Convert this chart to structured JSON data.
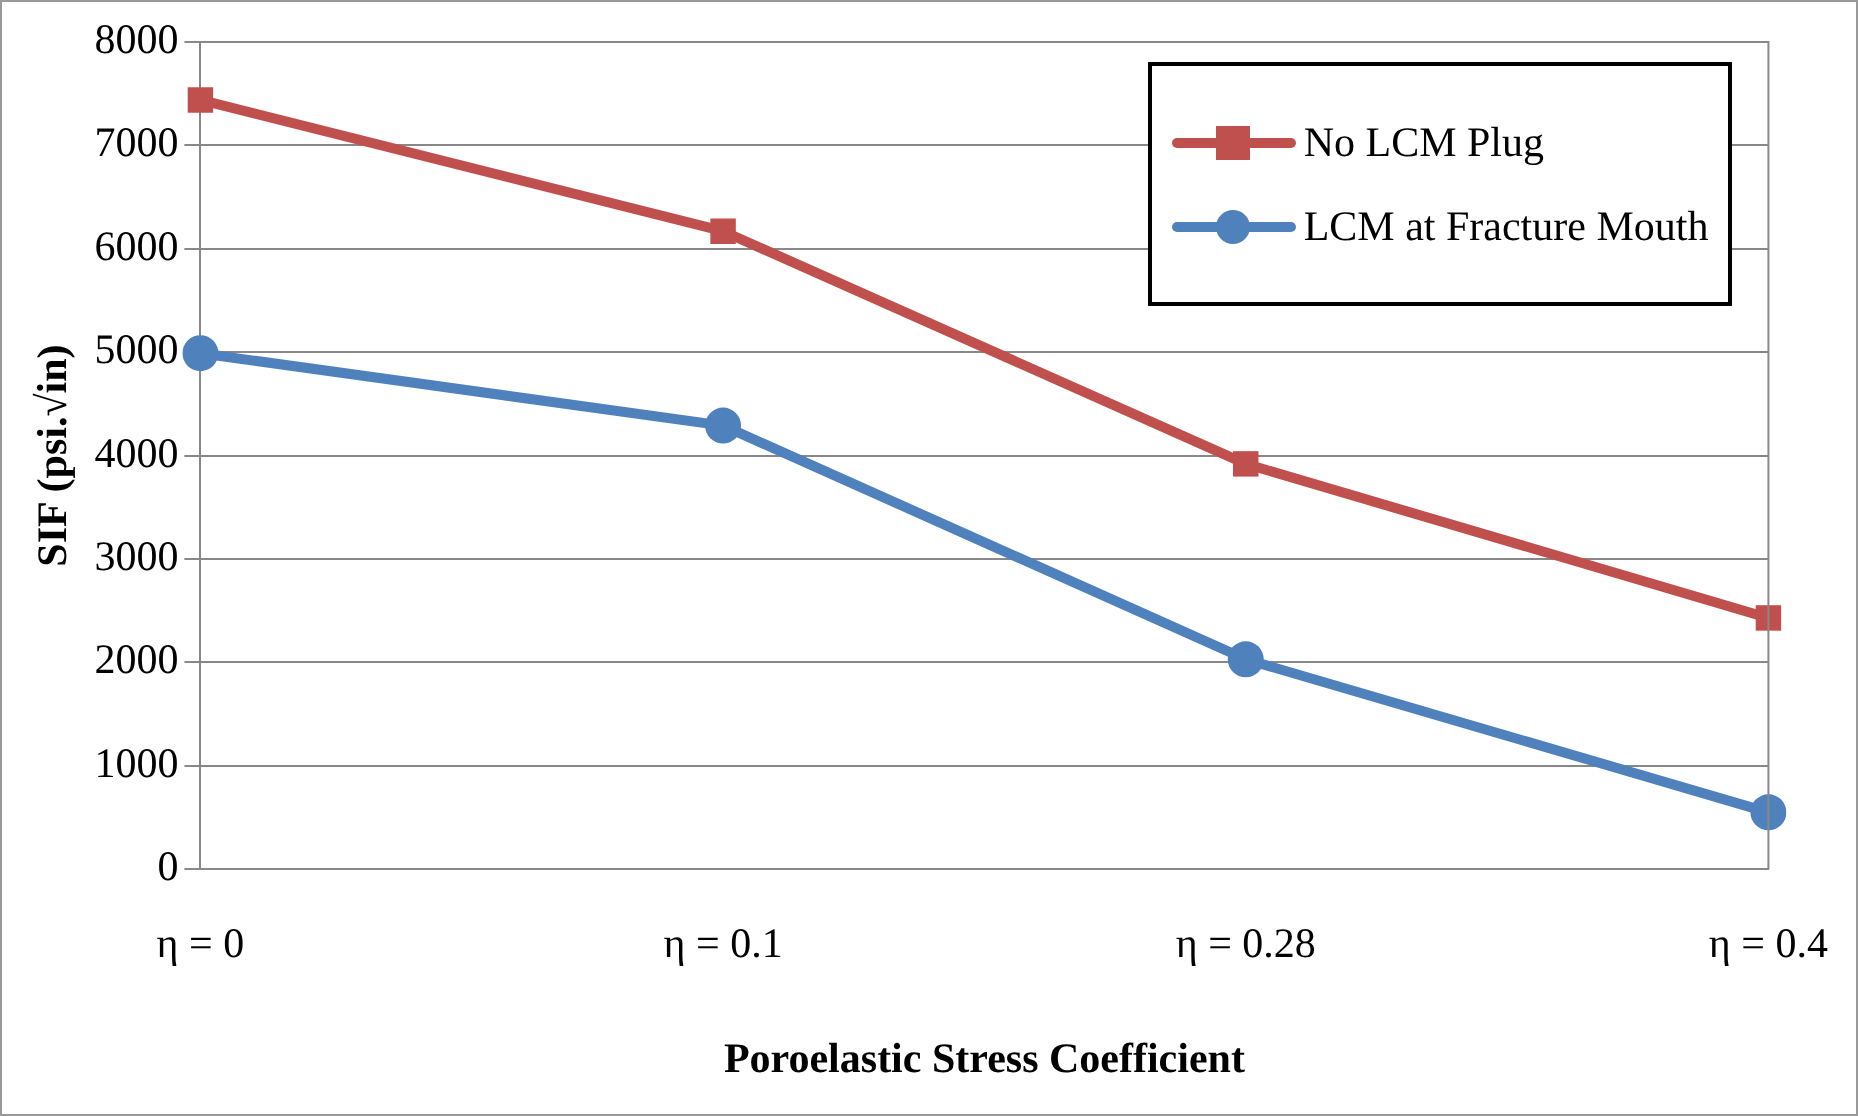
{
  "chart_data": {
    "type": "line",
    "xlabel": "Poroelastic Stress Coefficient",
    "ylabel": "SIF (psi.√in)",
    "categories": [
      "η = 0",
      "η = 0.1",
      "η = 0.28",
      "η = 0.4"
    ],
    "series": [
      {
        "name": "No LCM Plug",
        "color": "#c0504d",
        "marker": "square",
        "values": [
          7440,
          6170,
          3920,
          2430
        ]
      },
      {
        "name": "LCM at Fracture Mouth",
        "color": "#4f81bd",
        "marker": "circle",
        "values": [
          4990,
          4290,
          2030,
          550
        ]
      }
    ],
    "ylim": [
      0,
      8000
    ],
    "yticks": [
      0,
      1000,
      2000,
      3000,
      4000,
      5000,
      6000,
      7000,
      8000
    ],
    "grid": "y",
    "legend": "top right",
    "line_style": "solid"
  }
}
